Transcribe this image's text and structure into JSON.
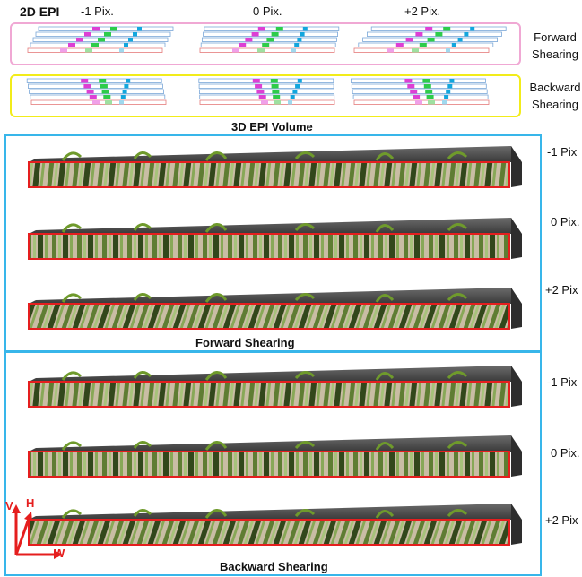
{
  "header": {
    "title": "2D EPI",
    "shifts": [
      "-1  Pix.",
      "0 Pix.",
      "+2 Pix."
    ]
  },
  "epi2d": {
    "forward_label_line1": "Forward",
    "forward_label_line2": "Shearing",
    "backward_label_line1": "Backward",
    "backward_label_line2": "Shearing",
    "forward_border": "#f0a8d4",
    "backward_border": "#f2ec1a"
  },
  "volume": {
    "title": "3D EPI Volume",
    "panel_color": "#38b6ea",
    "forward_caption": "Forward Shearing",
    "backward_caption": "Backward Shearing",
    "forward_rows": [
      "-1 Pix",
      "0 Pix.",
      "+2 Pix"
    ],
    "backward_rows": [
      "-1 Pix",
      "0 Pix.",
      "+2 Pix"
    ]
  },
  "axes": {
    "v": "V",
    "h": "H",
    "w": "W",
    "color": "#e51e1e"
  }
}
